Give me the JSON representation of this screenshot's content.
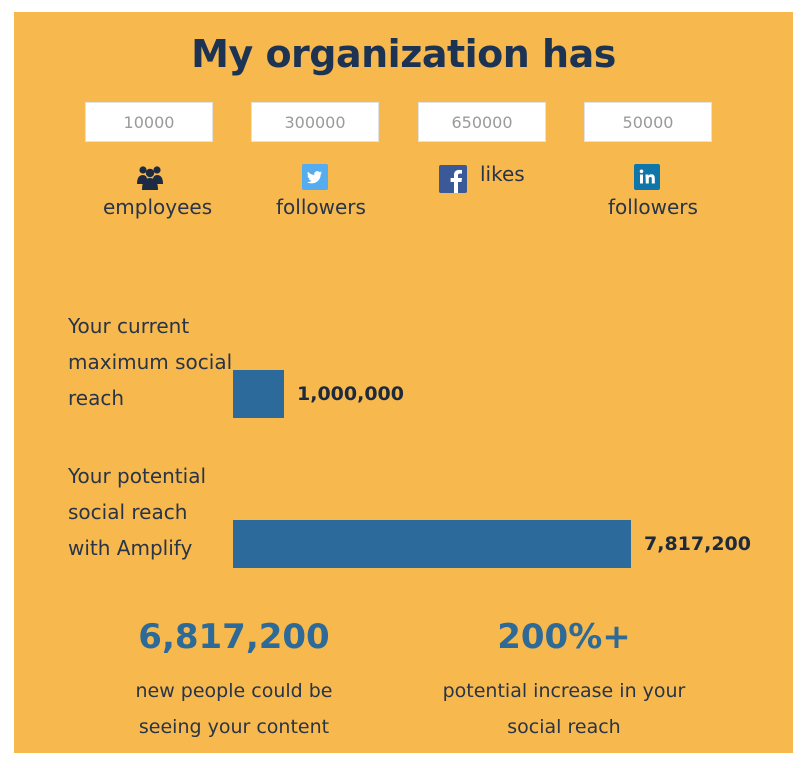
{
  "title": "My organization has",
  "inputs": [
    {
      "value": "10000",
      "icon": "people-icon",
      "caption": "employees"
    },
    {
      "value": "300000",
      "icon": "twitter-icon",
      "caption": "followers"
    },
    {
      "value": "650000",
      "icon": "facebook-icon",
      "caption": "likes"
    },
    {
      "value": "50000",
      "icon": "linkedin-icon",
      "caption": "followers"
    }
  ],
  "reach": {
    "current": {
      "label_lines": [
        "Your current",
        "maximum social",
        "reach"
      ],
      "value": 1000000,
      "value_label": "1,000,000"
    },
    "potential": {
      "label_lines": [
        "Your potential",
        "social reach",
        "with Amplify"
      ],
      "value": 7817200,
      "value_label": "7,817,200"
    }
  },
  "stats": [
    {
      "number": "6,817,200",
      "text_lines": [
        "new people could be",
        "seeing your content"
      ]
    },
    {
      "number": "200%+",
      "text_lines": [
        "potential increase in your",
        "social reach"
      ]
    }
  ],
  "colors": {
    "background": "#f7b84d",
    "title": "#1c3353",
    "bar": "#2c6a9c",
    "stat_number": "#2e6a97",
    "twitter": "#55acee",
    "facebook": "#3b5998",
    "linkedin": "#0e76a8"
  }
}
